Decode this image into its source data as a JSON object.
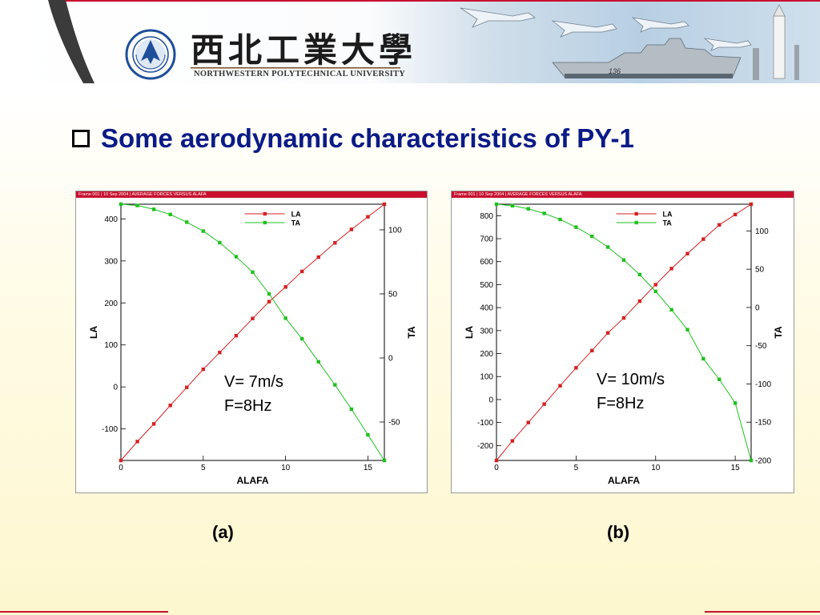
{
  "banner": {
    "university_cn": "西北工業大學",
    "university_en": "NORTHWESTERN POLYTECHNICAL UNIVERSITY",
    "ship_number": "136",
    "colors": {
      "frame_red": "#c8102e",
      "sky": "#b8cfe3",
      "title_blue": "#0a1a86"
    }
  },
  "slide": {
    "title": "Some aerodynamic characteristics of PY-1"
  },
  "chart_data": [
    {
      "type": "line",
      "panel_label": "(a)",
      "header": "Frame 001  |  10 Sep 2004  |  AVERAGE FORCES VERSUS ALAFA",
      "title": "",
      "xlabel": "ALAFA",
      "ylabel": "LA",
      "y2label": "TA",
      "xlim": [
        0,
        16
      ],
      "ylim": [
        -175,
        435
      ],
      "y2lim": [
        -80,
        120
      ],
      "xticks": [
        0,
        5,
        10,
        15
      ],
      "yticks": [
        -100,
        0,
        100,
        200,
        300,
        400
      ],
      "y2ticks": [
        -50,
        0,
        50,
        100
      ],
      "grid": false,
      "legend": "top-center",
      "x": [
        0,
        1,
        2,
        3,
        4,
        5,
        6,
        7,
        8,
        9,
        10,
        11,
        12,
        13,
        14,
        15,
        16
      ],
      "series": [
        {
          "name": "LA",
          "axis": "left",
          "color": "#d62020",
          "values": [
            -175,
            -130,
            -88,
            -44,
            -1,
            42,
            82,
            122,
            163,
            203,
            238,
            275,
            309,
            343,
            375,
            405,
            435
          ]
        },
        {
          "name": "TA",
          "axis": "right",
          "color": "#1fc01f",
          "values": [
            120,
            119,
            116,
            112,
            106,
            99,
            90,
            79,
            67,
            50,
            31,
            15,
            -3,
            -21,
            -40,
            -60,
            -80
          ]
        }
      ],
      "annotations": [
        "V= 7m/s",
        "F=8Hz"
      ]
    },
    {
      "type": "line",
      "panel_label": "(b)",
      "header": "Frame 001  |  10 Sep 2004  |  AVERAGE FORCES VERSUS ALAFA",
      "title": "",
      "xlabel": "ALAFA",
      "ylabel": "LA",
      "y2label": "TA",
      "xlim": [
        0,
        16
      ],
      "ylim": [
        -265,
        850
      ],
      "y2lim": [
        -200,
        135
      ],
      "xticks": [
        0,
        5,
        10,
        15
      ],
      "yticks": [
        -200,
        -100,
        0,
        100,
        200,
        300,
        400,
        500,
        600,
        700,
        800
      ],
      "y2ticks": [
        -200,
        -150,
        -100,
        -50,
        0,
        50,
        100
      ],
      "grid": false,
      "legend": "top-center",
      "x": [
        0,
        1,
        2,
        3,
        4,
        5,
        6,
        7,
        8,
        9,
        10,
        11,
        12,
        13,
        14,
        15,
        16
      ],
      "series": [
        {
          "name": "LA",
          "axis": "left",
          "color": "#d62020",
          "values": [
            -265,
            -180,
            -100,
            -20,
            60,
            138,
            213,
            290,
            355,
            428,
            500,
            570,
            635,
            698,
            760,
            805,
            850
          ]
        },
        {
          "name": "TA",
          "axis": "right",
          "color": "#1fc01f",
          "values": [
            135,
            133,
            129,
            123,
            115,
            105,
            93,
            79,
            62,
            43,
            21,
            -3,
            -29,
            -67,
            -94,
            -125,
            -200
          ]
        }
      ],
      "annotations": [
        "V= 10m/s",
        "F=8Hz"
      ]
    }
  ]
}
